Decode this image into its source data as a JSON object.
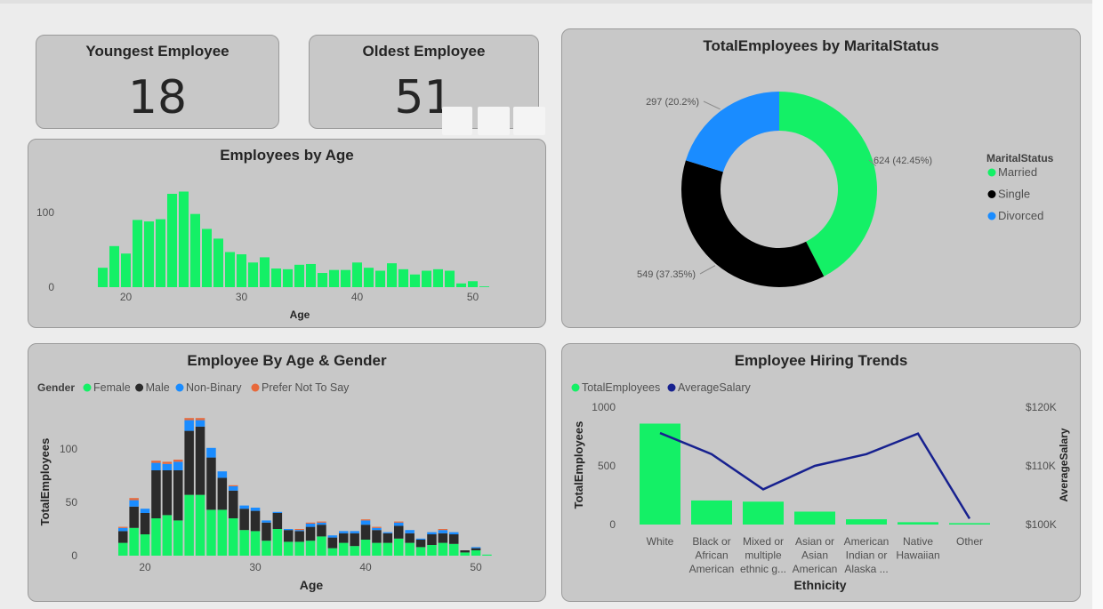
{
  "kpis": {
    "youngest": {
      "title": "Youngest Employee",
      "value": "18"
    },
    "oldest": {
      "title": "Oldest Employee",
      "value": "51"
    }
  },
  "colors": {
    "female": "#14f066",
    "male": "#2b2b2b",
    "nonbinary": "#1a8cff",
    "prefer_not": "#e8693b",
    "salary_line": "#17218f",
    "single": "#000000"
  },
  "chart_data": [
    {
      "id": "age",
      "type": "bar",
      "title": "Employees by Age",
      "xlabel": "Age",
      "ylabel": "",
      "x": [
        18,
        19,
        20,
        21,
        22,
        23,
        24,
        25,
        26,
        27,
        28,
        29,
        30,
        31,
        32,
        33,
        34,
        35,
        36,
        37,
        38,
        39,
        40,
        41,
        42,
        43,
        44,
        45,
        46,
        47,
        48,
        49,
        50,
        51
      ],
      "values": [
        26,
        55,
        45,
        90,
        88,
        91,
        125,
        128,
        98,
        78,
        65,
        47,
        44,
        33,
        40,
        25,
        24,
        30,
        31,
        19,
        23,
        23,
        33,
        26,
        22,
        32,
        24,
        17,
        22,
        24,
        22,
        5,
        8,
        1
      ],
      "xticks": [
        20,
        30,
        40,
        50
      ],
      "yticks": [
        0,
        100
      ],
      "ylim": [
        0,
        140
      ],
      "grid": false
    },
    {
      "id": "marital",
      "type": "pie",
      "title": "TotalEmployees by MaritalStatus",
      "legend_title": "MaritalStatus",
      "legend_position": "right",
      "categories": [
        "Married",
        "Single",
        "Divorced"
      ],
      "values": [
        624,
        549,
        297
      ],
      "labels": [
        "624 (42.45%)",
        "549 (37.35%)",
        "297 (20.2%)"
      ],
      "colors": [
        "#14f066",
        "#000000",
        "#1a8cff"
      ]
    },
    {
      "id": "gender",
      "type": "bar",
      "title": "Employee By Age & Gender",
      "xlabel": "Age",
      "ylabel": "TotalEmployees",
      "legend_title": "Gender",
      "legend_position": "top-left",
      "x": [
        18,
        19,
        20,
        21,
        22,
        23,
        24,
        25,
        26,
        27,
        28,
        29,
        30,
        31,
        32,
        33,
        34,
        35,
        36,
        37,
        38,
        39,
        40,
        41,
        42,
        43,
        44,
        45,
        46,
        47,
        48,
        49,
        50,
        51
      ],
      "series": [
        {
          "name": "Female",
          "color": "#14f066",
          "values": [
            12,
            26,
            20,
            35,
            38,
            33,
            57,
            57,
            43,
            43,
            35,
            24,
            23,
            14,
            25,
            13,
            13,
            14,
            18,
            7,
            12,
            9,
            15,
            12,
            12,
            16,
            12,
            8,
            10,
            12,
            11,
            3,
            5,
            1
          ]
        },
        {
          "name": "Male",
          "color": "#2b2b2b",
          "values": [
            11,
            20,
            20,
            45,
            42,
            47,
            60,
            64,
            49,
            30,
            26,
            20,
            19,
            17,
            15,
            11,
            10,
            13,
            11,
            10,
            9,
            12,
            14,
            12,
            9,
            12,
            9,
            7,
            10,
            9,
            9,
            2,
            2,
            0
          ]
        },
        {
          "name": "Non-Binary",
          "color": "#1a8cff",
          "values": [
            3,
            6,
            4,
            7,
            6,
            8,
            10,
            6,
            9,
            6,
            4,
            3,
            3,
            2,
            1,
            1,
            1,
            3,
            2,
            2,
            2,
            2,
            4,
            2,
            1,
            3,
            3,
            1,
            2,
            3,
            2,
            0,
            1,
            0
          ]
        },
        {
          "name": "Prefer Not To Say",
          "color": "#e8693b",
          "values": [
            1,
            2,
            0,
            2,
            2,
            2,
            2,
            2,
            0,
            0,
            1,
            0,
            0,
            0,
            0,
            0,
            1,
            1,
            1,
            0,
            0,
            0,
            1,
            1,
            0,
            1,
            0,
            0,
            0,
            1,
            0,
            0,
            0,
            0
          ]
        }
      ],
      "xticks": [
        20,
        30,
        40,
        50
      ],
      "yticks": [
        0,
        50,
        100
      ],
      "ylim": [
        0,
        140
      ],
      "grid": false
    },
    {
      "id": "hiring",
      "type": "bar",
      "title": "Employee Hiring Trends",
      "xlabel": "Ethnicity",
      "ylabel": "TotalEmployees",
      "y2label": "AverageSalary",
      "legend_position": "top-left",
      "categories": [
        [
          "White"
        ],
        [
          "Black or",
          "African",
          "American"
        ],
        [
          "Mixed or",
          "multiple",
          "ethnic g..."
        ],
        [
          "Asian or",
          "Asian",
          "American"
        ],
        [
          "American",
          "Indian or",
          "Alaska ..."
        ],
        [
          "Native",
          "Hawaiian"
        ],
        [
          "Other"
        ]
      ],
      "series": [
        {
          "name": "TotalEmployees",
          "type": "bar",
          "color": "#14f066",
          "values": [
            860,
            205,
            195,
            110,
            45,
            20,
            12
          ]
        },
        {
          "name": "AverageSalary",
          "type": "line",
          "color": "#17218f",
          "values": [
            115600,
            112000,
            106000,
            110000,
            112000,
            115500,
            101000
          ]
        }
      ],
      "yticks": [
        0,
        500,
        1000
      ],
      "ylim": [
        0,
        1000
      ],
      "y2ticks": [
        "$100K",
        "$110K",
        "$120K"
      ],
      "y2lim": [
        100000,
        120000
      ],
      "grid": false
    }
  ]
}
